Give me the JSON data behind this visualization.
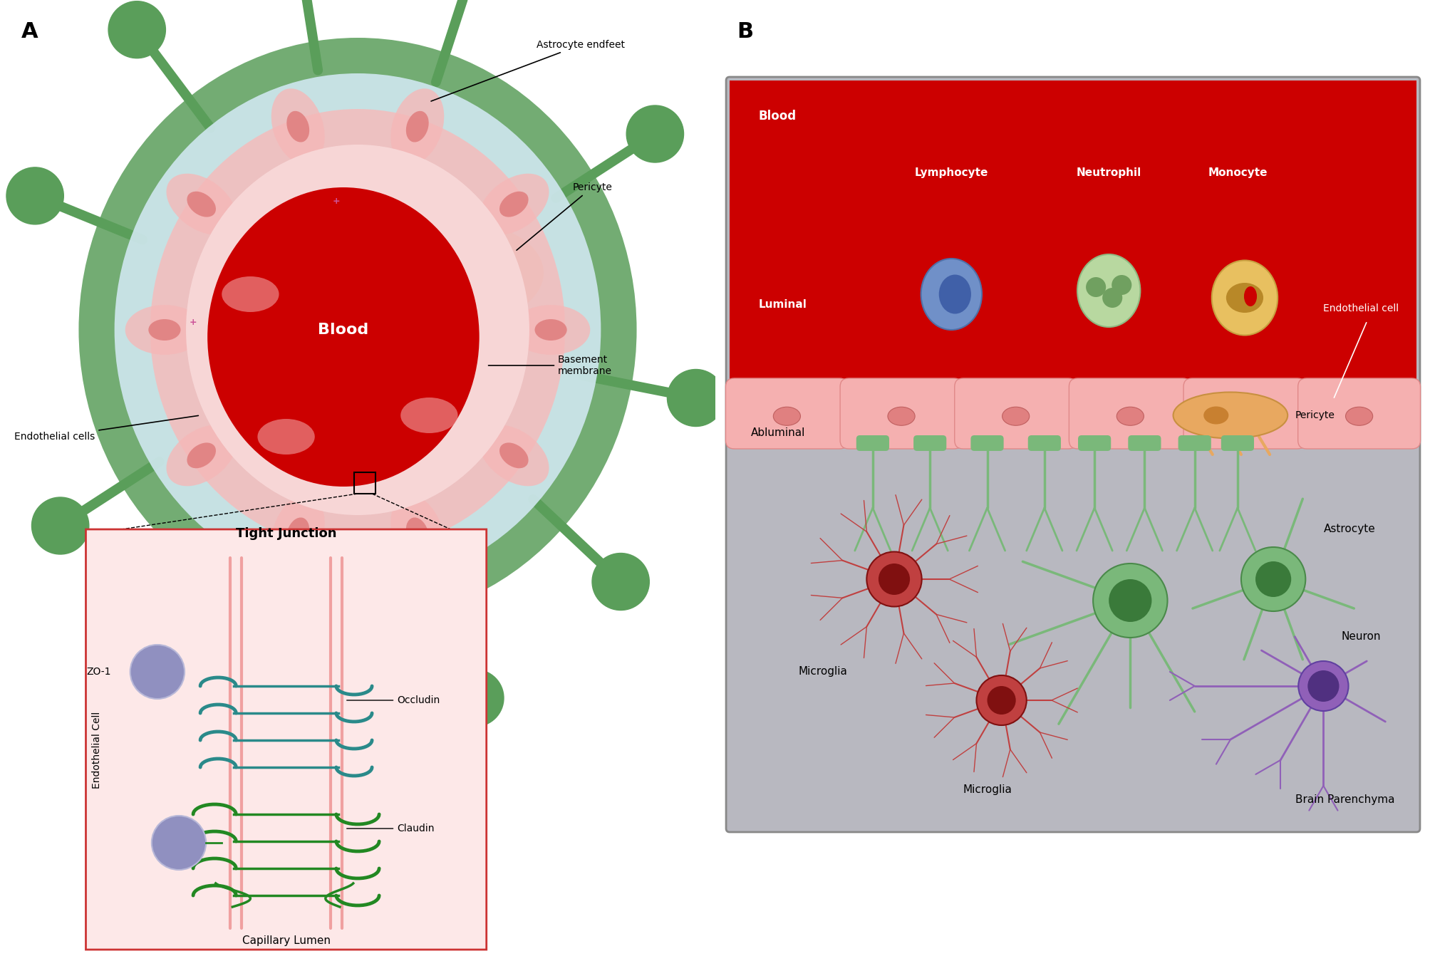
{
  "panel_A_label": "A",
  "panel_B_label": "B",
  "blood_text": "Blood",
  "astrocyte_endfeet_text": "Astrocyte endfeet",
  "pericyte_text": "Pericyte",
  "basement_membrane_text": "Basement\nmembrane",
  "endothelial_cells_text": "Endothelial cells",
  "tight_junction_title": "Tight Junction",
  "zo1_text": "ZO-1",
  "occludin_text": "Occludin",
  "claudin_text": "Claudin",
  "endothelial_cell_label": "Endothelial Cell",
  "capillary_lumen_text": "Capillary Lumen",
  "blood_label_B": "Blood",
  "lymphocyte_text": "Lymphocyte",
  "neutrophil_text": "Neutrophil",
  "monocyte_text": "Monocyte",
  "luminal_text": "Luminal",
  "endothelial_cell_B_text": "Endothelial cell",
  "abluminal_text": "Abluminal",
  "pericyte_B_text": "Pericyte",
  "astrocyte_text": "Astrocyte",
  "microglia_text1": "Microglia",
  "microglia_text2": "Microglia",
  "neuron_text": "Neuron",
  "brain_parenchyma_text": "Brain Parenchyma",
  "bg_color": "#ffffff",
  "blood_red": "#cc0000",
  "light_red": "#f5b8b8",
  "astrocyte_green": "#5a9e5a",
  "light_blue_outer": "#d0e8f0",
  "pericyte_orange": "#e8a860",
  "zo1_purple": "#9090c0",
  "occludin_teal": "#2a8a8a",
  "claudin_green": "#228822",
  "border_red": "#cc3333",
  "blood_vessel_pink": "#f0c0c0",
  "astrocyte_process_green": "#7ab87a",
  "gray_parenchyma": "#b8b8c0",
  "light_blue_abluminal": "#daeef5",
  "endothelial_pink": "#f5b0b0"
}
